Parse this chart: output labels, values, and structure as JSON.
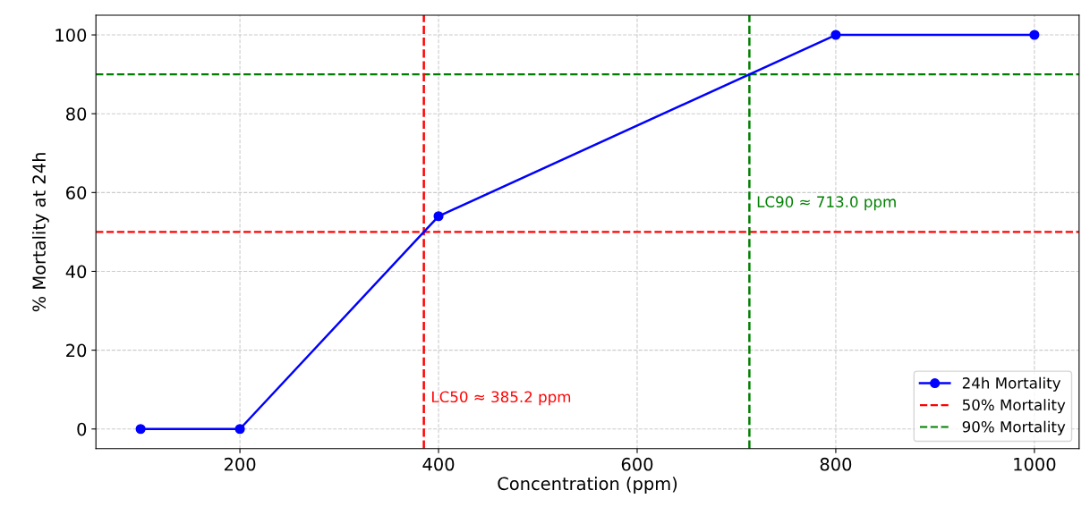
{
  "chart_data": {
    "type": "line",
    "xlabel": "Concentration (ppm)",
    "ylabel": "% Mortality at 24h",
    "x": [
      100,
      200,
      400,
      800,
      1000
    ],
    "series": [
      {
        "name": "24h Mortality",
        "color": "#0000ff",
        "values": [
          0,
          0,
          54,
          100,
          100
        ]
      }
    ],
    "marker": "circle",
    "line_style": "solid",
    "xlim": [
      55,
      1045
    ],
    "xticks": [
      200,
      400,
      600,
      800,
      1000
    ],
    "ylim": [
      -5,
      105
    ],
    "yticks": [
      0,
      20,
      40,
      60,
      80,
      100
    ],
    "ref_lines": [
      {
        "axis": "y",
        "value": 50,
        "label": "50% Mortality",
        "color": "#ff0000",
        "line_style": "dashed"
      },
      {
        "axis": "y",
        "value": 90,
        "label": "90% Mortality",
        "color": "#008000",
        "line_style": "dashed"
      },
      {
        "axis": "x",
        "value": 385.2,
        "label": "LC50 ≈ 385.2 ppm",
        "color": "#ff0000",
        "line_style": "dashed"
      },
      {
        "axis": "x",
        "value": 713.0,
        "label": "LC90 ≈ 713.0 ppm",
        "color": "#008000",
        "line_style": "dashed"
      }
    ],
    "grid": true,
    "legend": "bottom right"
  }
}
